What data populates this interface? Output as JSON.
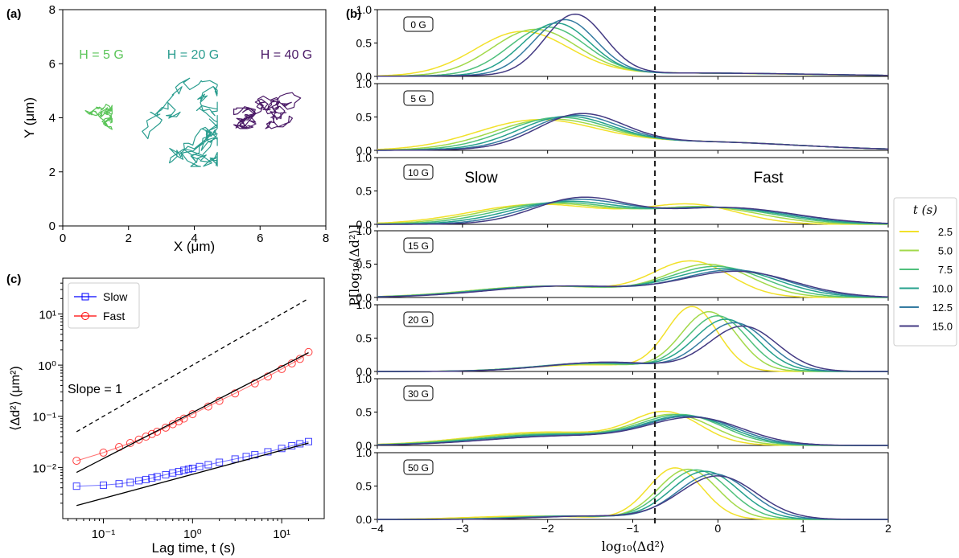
{
  "panel_labels": {
    "a": "(a)",
    "b": "(b)",
    "c": "(c)"
  },
  "colors": {
    "h5": "#5cc55a",
    "h20": "#2a9d8f",
    "h40": "#4b1a67",
    "slow": "#0000ff",
    "fast": "#ff0000",
    "viridis": [
      "#f2e12a",
      "#a2d94a",
      "#4fc07c",
      "#25a18c",
      "#357ba1",
      "#433a83"
    ]
  },
  "chart_data": [
    {
      "id": "a",
      "type": "scatter",
      "title": "",
      "xlabel": "X (μm)",
      "ylabel": "Y (μm)",
      "xlim": [
        0,
        8
      ],
      "ylim": [
        0,
        8
      ],
      "xticks": [
        "0",
        "2",
        "4",
        "6",
        "8"
      ],
      "yticks": [
        "0",
        "2",
        "4",
        "6",
        "8"
      ],
      "grid": false,
      "annotations": [
        "H = 5 G",
        "H = 20 G",
        "H = 40 G"
      ],
      "series": [
        {
          "name": "H = 5 G",
          "center": [
            1.0,
            4.1
          ],
          "x_range": [
            0.4,
            1.5
          ],
          "y_range": [
            3.5,
            4.5
          ]
        },
        {
          "name": "H = 20 G",
          "center": [
            3.5,
            4.0
          ],
          "x_range": [
            2.1,
            4.7
          ],
          "y_range": [
            2.2,
            6.2
          ]
        },
        {
          "name": "H = 40 G",
          "center": [
            6.5,
            4.3
          ],
          "x_range": [
            5.2,
            7.6
          ],
          "y_range": [
            3.6,
            5.1
          ]
        }
      ]
    },
    {
      "id": "b",
      "type": "line",
      "xlabel": "log₁₀⟨Δd²⟩",
      "ylabel": "P[log₁₀⟨Δd²⟩]",
      "xlim": [
        -4,
        2
      ],
      "ylim": [
        0,
        1.0
      ],
      "xticks": [
        "−4",
        "−3",
        "−2",
        "−1",
        "0",
        "1",
        "2"
      ],
      "yticks": [
        "0.0",
        "0.5",
        "1.0"
      ],
      "vline_x": -0.74,
      "annotations": [
        "Slow",
        "Fast"
      ],
      "legend": {
        "title": "t (s)",
        "entries": [
          "2.5",
          "5.0",
          "7.5",
          "10.0",
          "12.5",
          "15.0"
        ],
        "placement": "right"
      },
      "subplots": [
        {
          "label": "0 G",
          "peaks": [
            [
              [
                -2.3,
                0.65,
                0.55
              ],
              [
                -0.5,
                0.05,
                1.5
              ]
            ],
            [
              [
                -2.15,
                0.68,
                0.5
              ],
              [
                -0.4,
                0.05,
                1.5
              ]
            ],
            [
              [
                -2.0,
                0.71,
                0.45
              ],
              [
                -0.4,
                0.05,
                1.5
              ]
            ],
            [
              [
                -1.9,
                0.77,
                0.4
              ],
              [
                -0.3,
                0.05,
                1.5
              ]
            ],
            [
              [
                -1.8,
                0.82,
                0.37
              ],
              [
                -0.3,
                0.05,
                1.5
              ]
            ],
            [
              [
                -1.68,
                0.9,
                0.35
              ],
              [
                -0.3,
                0.05,
                1.5
              ]
            ]
          ]
        },
        {
          "label": "5 G",
          "peaks": [
            [
              [
                -2.15,
                0.42,
                0.7
              ],
              [
                -0.3,
                0.13,
                1.2
              ]
            ],
            [
              [
                -2.0,
                0.42,
                0.65
              ],
              [
                -0.3,
                0.13,
                1.2
              ]
            ],
            [
              [
                -1.9,
                0.44,
                0.6
              ],
              [
                -0.3,
                0.13,
                1.2
              ]
            ],
            [
              [
                -1.8,
                0.45,
                0.55
              ],
              [
                -0.3,
                0.13,
                1.2
              ]
            ],
            [
              [
                -1.7,
                0.46,
                0.52
              ],
              [
                -0.3,
                0.13,
                1.2
              ]
            ],
            [
              [
                -1.62,
                0.48,
                0.5
              ],
              [
                -0.3,
                0.13,
                1.2
              ]
            ]
          ]
        },
        {
          "label": "10 G",
          "peaks": [
            [
              [
                -2.1,
                0.3,
                0.8
              ],
              [
                -0.3,
                0.28,
                0.55
              ]
            ],
            [
              [
                -2.0,
                0.31,
                0.75
              ],
              [
                -0.15,
                0.25,
                0.65
              ]
            ],
            [
              [
                -1.9,
                0.32,
                0.7
              ],
              [
                -0.05,
                0.25,
                0.7
              ]
            ],
            [
              [
                -1.8,
                0.33,
                0.65
              ],
              [
                0.0,
                0.25,
                0.75
              ]
            ],
            [
              [
                -1.7,
                0.35,
                0.6
              ],
              [
                0.05,
                0.25,
                0.8
              ]
            ],
            [
              [
                -1.62,
                0.38,
                0.55
              ],
              [
                0.1,
                0.25,
                0.8
              ]
            ]
          ]
        },
        {
          "label": "15 G",
          "peaks": [
            [
              [
                -2.0,
                0.17,
                0.9
              ],
              [
                -0.3,
                0.52,
                0.45
              ]
            ],
            [
              [
                -2.0,
                0.17,
                0.9
              ],
              [
                -0.1,
                0.48,
                0.5
              ]
            ],
            [
              [
                -1.95,
                0.17,
                0.9
              ],
              [
                0.0,
                0.45,
                0.55
              ]
            ],
            [
              [
                -1.9,
                0.17,
                0.9
              ],
              [
                0.1,
                0.42,
                0.6
              ]
            ],
            [
              [
                -1.85,
                0.17,
                0.9
              ],
              [
                0.2,
                0.4,
                0.62
              ]
            ],
            [
              [
                -1.8,
                0.17,
                0.9
              ],
              [
                0.25,
                0.38,
                0.65
              ]
            ]
          ]
        },
        {
          "label": "20 G",
          "peaks": [
            [
              [
                -1.5,
                0.1,
                0.7
              ],
              [
                -0.3,
                0.95,
                0.3
              ]
            ],
            [
              [
                -1.5,
                0.11,
                0.7
              ],
              [
                -0.1,
                0.88,
                0.33
              ]
            ],
            [
              [
                -1.45,
                0.12,
                0.7
              ],
              [
                0.0,
                0.82,
                0.35
              ]
            ],
            [
              [
                -1.4,
                0.13,
                0.7
              ],
              [
                0.1,
                0.77,
                0.37
              ]
            ],
            [
              [
                -1.35,
                0.13,
                0.7
              ],
              [
                0.2,
                0.72,
                0.38
              ]
            ],
            [
              [
                -1.3,
                0.14,
                0.7
              ],
              [
                0.3,
                0.67,
                0.4
              ]
            ]
          ]
        },
        {
          "label": "30 G",
          "peaks": [
            [
              [
                -2.0,
                0.2,
                0.9
              ],
              [
                -0.6,
                0.45,
                0.4
              ]
            ],
            [
              [
                -2.0,
                0.18,
                0.9
              ],
              [
                -0.5,
                0.42,
                0.45
              ]
            ],
            [
              [
                -1.9,
                0.17,
                0.9
              ],
              [
                -0.4,
                0.42,
                0.48
              ]
            ],
            [
              [
                -1.9,
                0.16,
                0.9
              ],
              [
                -0.35,
                0.41,
                0.5
              ]
            ],
            [
              [
                -1.8,
                0.15,
                0.9
              ],
              [
                -0.3,
                0.4,
                0.52
              ]
            ],
            [
              [
                -1.8,
                0.14,
                0.9
              ],
              [
                -0.25,
                0.39,
                0.55
              ]
            ]
          ]
        },
        {
          "label": "50 G",
          "peaks": [
            [
              [
                -2.2,
                0.05,
                0.7
              ],
              [
                -0.5,
                0.77,
                0.32
              ]
            ],
            [
              [
                -1.9,
                0.05,
                0.6
              ],
              [
                -0.35,
                0.75,
                0.35
              ]
            ],
            [
              [
                -1.8,
                0.05,
                0.6
              ],
              [
                -0.25,
                0.74,
                0.38
              ]
            ],
            [
              [
                -1.7,
                0.05,
                0.6
              ],
              [
                -0.15,
                0.72,
                0.4
              ]
            ],
            [
              [
                -1.6,
                0.05,
                0.6
              ],
              [
                -0.05,
                0.68,
                0.42
              ]
            ],
            [
              [
                -1.5,
                0.05,
                0.6
              ],
              [
                0.0,
                0.65,
                0.45
              ]
            ]
          ]
        }
      ]
    },
    {
      "id": "c",
      "type": "scatter",
      "xlabel": "Lag time, t (s)",
      "ylabel": "⟨Δd²⟩ (μm²)",
      "xscale": "log",
      "yscale": "log",
      "xlim": [
        0.035,
        30
      ],
      "ylim": [
        0.001,
        50
      ],
      "xticks": [
        {
          "v": 0.1,
          "label": "10⁻¹"
        },
        {
          "v": 1,
          "label": "10⁰"
        },
        {
          "v": 10,
          "label": "10¹"
        }
      ],
      "yticks": [
        {
          "v": 0.01,
          "label": "10⁻²"
        },
        {
          "v": 0.1,
          "label": "10⁻¹"
        },
        {
          "v": 1,
          "label": "10⁰"
        },
        {
          "v": 10,
          "label": "10¹"
        }
      ],
      "annotations": [
        "Slope = 1"
      ],
      "legend": {
        "entries": [
          "Slow",
          "Fast"
        ],
        "placement": "top-left"
      },
      "series": [
        {
          "name": "Slow",
          "marker": "square",
          "t": [
            0.05,
            0.1,
            0.15,
            0.2,
            0.25,
            0.3,
            0.35,
            0.4,
            0.5,
            0.6,
            0.7,
            0.8,
            0.9,
            1.0,
            1.2,
            1.5,
            2,
            3,
            4,
            5,
            7,
            10,
            13,
            16,
            20
          ],
          "y": [
            0.0043,
            0.0045,
            0.0048,
            0.0051,
            0.0055,
            0.0058,
            0.0062,
            0.0066,
            0.0072,
            0.0078,
            0.0083,
            0.0088,
            0.0092,
            0.0096,
            0.0104,
            0.0113,
            0.0126,
            0.0146,
            0.0163,
            0.0177,
            0.0202,
            0.0235,
            0.0265,
            0.029,
            0.032
          ]
        },
        {
          "name": "Fast",
          "marker": "circle",
          "t": [
            0.05,
            0.1,
            0.15,
            0.2,
            0.25,
            0.3,
            0.35,
            0.4,
            0.5,
            0.6,
            0.7,
            0.8,
            1.0,
            1.5,
            2,
            3,
            5,
            7,
            10,
            13,
            16,
            20
          ],
          "y": [
            0.0135,
            0.0195,
            0.025,
            0.03,
            0.035,
            0.04,
            0.045,
            0.05,
            0.06,
            0.07,
            0.08,
            0.09,
            0.11,
            0.155,
            0.2,
            0.28,
            0.44,
            0.6,
            0.84,
            1.08,
            1.32,
            1.8
          ]
        }
      ],
      "fit_lines": [
        {
          "t": [
            0.05,
            20
          ],
          "y": [
            0.0018,
            0.03
          ]
        },
        {
          "t": [
            0.05,
            20
          ],
          "y": [
            0.008,
            1.75
          ]
        }
      ],
      "reference_line": {
        "label": "Slope = 1",
        "t": [
          0.05,
          20
        ],
        "y": [
          0.05,
          20
        ]
      }
    }
  ]
}
